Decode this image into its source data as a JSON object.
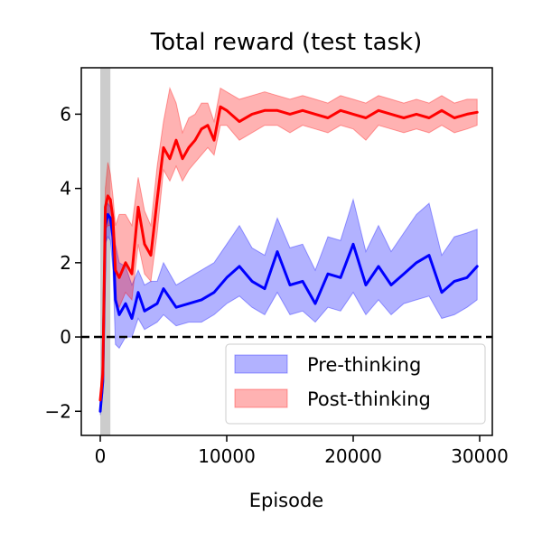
{
  "chart_data": {
    "type": "line",
    "title": "Total reward (test task)",
    "xlabel": "Episode",
    "ylabel": "",
    "xlim": [
      -1500,
      31000
    ],
    "ylim": [
      -2.65,
      7.25
    ],
    "xticks": [
      0,
      10000,
      20000,
      30000
    ],
    "xtick_labels": [
      "0",
      "10000",
      "20000",
      "30000"
    ],
    "yticks": [
      -2,
      0,
      2,
      4,
      6
    ],
    "ytick_labels": [
      "−2",
      "0",
      "2",
      "4",
      "6"
    ],
    "reference_line": {
      "y": 0,
      "style": "dashed",
      "color": "#000000"
    },
    "shaded_region": {
      "x": [
        0,
        800
      ],
      "color": "#cccccc"
    },
    "legend": {
      "placement": "lower-right"
    },
    "grid": false,
    "series": [
      {
        "name": "Pre-thinking",
        "color": "#0000ff",
        "fill_color": "#0000ff",
        "x": [
          0,
          200,
          400,
          600,
          800,
          1000,
          1200,
          1500,
          2000,
          2500,
          3000,
          3500,
          4000,
          4500,
          5000,
          6000,
          7000,
          8000,
          9000,
          10000,
          11000,
          12000,
          13000,
          14000,
          15000,
          16000,
          17000,
          18000,
          19000,
          20000,
          21000,
          22000,
          23000,
          24000,
          25000,
          26000,
          27000,
          28000,
          29000,
          29800
        ],
        "y": [
          -2.0,
          -1.2,
          3.0,
          3.3,
          3.2,
          2.7,
          1.0,
          0.6,
          0.9,
          0.5,
          1.2,
          0.7,
          0.8,
          0.9,
          1.3,
          0.8,
          0.9,
          1.0,
          1.2,
          1.6,
          1.9,
          1.5,
          1.3,
          2.3,
          1.4,
          1.5,
          0.9,
          1.7,
          1.6,
          2.5,
          1.4,
          1.9,
          1.4,
          1.7,
          2.0,
          2.2,
          1.2,
          1.5,
          1.6,
          1.9
        ],
        "lower": [
          -2.1,
          -1.5,
          2.5,
          2.7,
          2.6,
          1.8,
          -0.2,
          -0.3,
          0.0,
          0.0,
          0.5,
          0.2,
          0.3,
          0.4,
          0.6,
          0.3,
          0.4,
          0.4,
          0.6,
          0.9,
          1.1,
          0.8,
          0.6,
          1.2,
          0.6,
          0.7,
          0.4,
          0.8,
          0.7,
          1.2,
          0.6,
          1.0,
          0.6,
          0.9,
          1.0,
          1.1,
          0.5,
          0.6,
          0.8,
          1.0
        ],
        "upper": [
          -1.8,
          -0.8,
          3.5,
          3.6,
          3.5,
          3.3,
          2.5,
          2.0,
          1.9,
          1.4,
          1.8,
          1.4,
          1.5,
          1.5,
          2.0,
          1.4,
          1.6,
          1.8,
          2.0,
          2.5,
          3.0,
          2.4,
          2.2,
          3.2,
          2.4,
          2.5,
          1.8,
          2.7,
          2.6,
          3.7,
          2.3,
          3.0,
          2.3,
          2.8,
          3.3,
          3.6,
          2.2,
          2.7,
          2.8,
          2.9
        ]
      },
      {
        "name": "Post-thinking",
        "color": "#ff0000",
        "fill_color": "#ff0000",
        "x": [
          0,
          200,
          400,
          600,
          800,
          1000,
          1200,
          1500,
          2000,
          2500,
          3000,
          3500,
          4000,
          4500,
          5000,
          5500,
          6000,
          6500,
          7000,
          7500,
          8000,
          8500,
          9000,
          9500,
          10000,
          11000,
          12000,
          13000,
          14000,
          15000,
          16000,
          17000,
          18000,
          19000,
          20000,
          21000,
          22000,
          23000,
          24000,
          25000,
          26000,
          27000,
          28000,
          29000,
          29800
        ],
        "y": [
          -1.7,
          -1.0,
          3.5,
          3.8,
          3.7,
          3.2,
          1.8,
          1.6,
          2.0,
          1.7,
          3.5,
          2.5,
          2.2,
          3.7,
          5.1,
          4.8,
          5.3,
          4.8,
          5.1,
          5.3,
          5.6,
          5.7,
          5.3,
          6.2,
          6.1,
          5.8,
          6.0,
          6.1,
          6.1,
          6.0,
          6.1,
          6.0,
          5.9,
          6.1,
          6.0,
          5.9,
          6.1,
          6.0,
          5.9,
          6.0,
          5.9,
          6.1,
          5.9,
          6.0,
          6.05
        ],
        "lower": [
          -1.9,
          -1.5,
          2.9,
          3.0,
          3.0,
          2.4,
          1.0,
          0.8,
          1.2,
          1.0,
          2.5,
          1.7,
          1.5,
          2.8,
          4.5,
          4.2,
          4.6,
          4.2,
          4.5,
          4.7,
          4.9,
          5.1,
          4.9,
          5.7,
          5.7,
          5.3,
          5.5,
          5.7,
          5.7,
          5.5,
          5.7,
          5.6,
          5.5,
          5.7,
          5.6,
          5.3,
          5.7,
          5.6,
          5.5,
          5.6,
          5.5,
          5.7,
          5.5,
          5.6,
          5.7
        ],
        "upper": [
          -1.5,
          -0.5,
          4.0,
          4.7,
          4.4,
          3.8,
          3.0,
          3.3,
          3.3,
          3.0,
          4.3,
          3.4,
          3.0,
          4.6,
          5.8,
          6.7,
          6.3,
          5.5,
          5.9,
          6.0,
          6.3,
          6.3,
          5.8,
          6.7,
          6.6,
          6.4,
          6.5,
          6.6,
          6.5,
          6.4,
          6.5,
          6.4,
          6.3,
          6.5,
          6.4,
          6.3,
          6.5,
          6.4,
          6.3,
          6.4,
          6.3,
          6.5,
          6.3,
          6.4,
          6.4
        ]
      }
    ]
  }
}
